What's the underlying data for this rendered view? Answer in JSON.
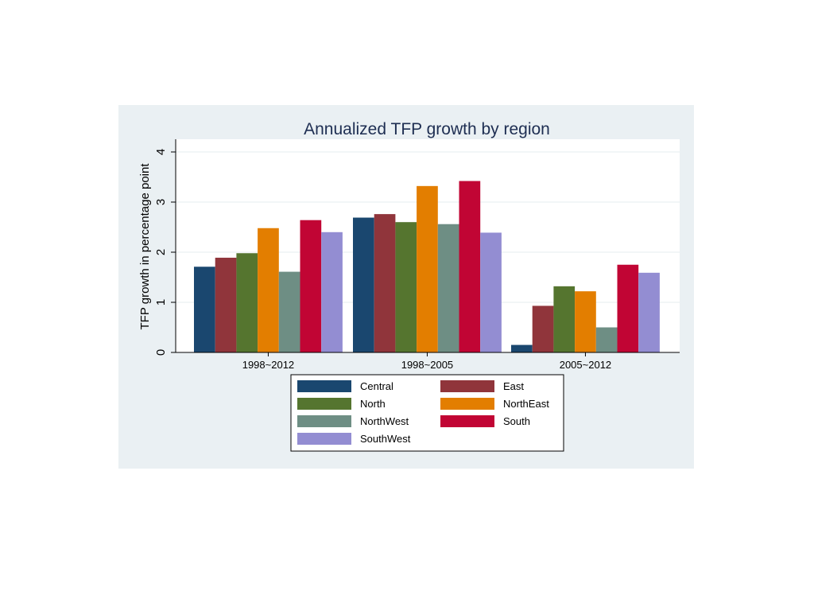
{
  "chart_data": {
    "type": "bar",
    "title": "Annualized TFP growth by region",
    "ylabel": "TFP growth in percentage point",
    "xlabel": "",
    "ylim": [
      0,
      4
    ],
    "yticks": [
      0,
      1,
      2,
      3,
      4
    ],
    "grid": true,
    "legend_position": "bottom",
    "categories": [
      "1998~2012",
      "1998~2005",
      "2005~2012"
    ],
    "series": [
      {
        "name": "Central",
        "color": "#1a476f",
        "values": [
          1.71,
          2.69,
          0.15
        ]
      },
      {
        "name": "East",
        "color": "#90353b",
        "values": [
          1.89,
          2.76,
          0.93
        ]
      },
      {
        "name": "North",
        "color": "#55752f",
        "values": [
          1.98,
          2.6,
          1.32
        ]
      },
      {
        "name": "NorthEast",
        "color": "#e37e00",
        "values": [
          2.48,
          3.32,
          1.22
        ]
      },
      {
        "name": "NorthWest",
        "color": "#6e8e84",
        "values": [
          1.61,
          2.56,
          0.5
        ]
      },
      {
        "name": "South",
        "color": "#c10534",
        "values": [
          2.64,
          3.42,
          1.75
        ]
      },
      {
        "name": "SouthWest",
        "color": "#938dd2",
        "values": [
          2.4,
          2.39,
          1.59
        ]
      }
    ]
  }
}
